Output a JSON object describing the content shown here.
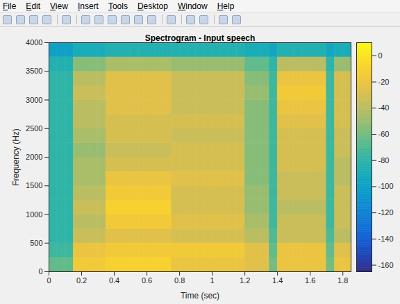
{
  "figure_window": {
    "menu": [
      "File",
      "Edit",
      "View",
      "Insert",
      "Tools",
      "Desktop",
      "Window",
      "Help"
    ]
  },
  "chart_data": {
    "type": "heatmap",
    "title": "Spectrogram - Input speech",
    "xlabel": "Time (sec)",
    "ylabel": "Frequency (Hz)",
    "xlim": [
      0,
      1.85
    ],
    "xticks": [
      0,
      0.2,
      0.4,
      0.6,
      0.8,
      1,
      1.2,
      1.4,
      1.6,
      1.8
    ],
    "ylim": [
      0,
      4000
    ],
    "yticks": [
      0,
      500,
      1000,
      1500,
      2000,
      2500,
      3000,
      3500,
      4000
    ],
    "x_bins": [
      0,
      0.05,
      0.1,
      0.15,
      0.2,
      0.25,
      0.3,
      0.35,
      0.4,
      0.45,
      0.5,
      0.55,
      0.6,
      0.65,
      0.7,
      0.75,
      0.8,
      0.85,
      0.9,
      0.95,
      1,
      1.05,
      1.1,
      1.15,
      1.2,
      1.25,
      1.3,
      1.35,
      1.4,
      1.45,
      1.5,
      1.55,
      1.6,
      1.65,
      1.7,
      1.75,
      1.8,
      1.85
    ],
    "y_bins": [
      0,
      250,
      500,
      750,
      1000,
      1250,
      1500,
      1750,
      2000,
      2250,
      2500,
      2750,
      3000,
      3250,
      3500,
      3750,
      4000
    ],
    "cells": [
      [
        -65,
        -65,
        -65,
        -15,
        -15,
        -15,
        -15,
        -10,
        -10,
        -10,
        -10,
        -10,
        -10,
        -10,
        -10,
        -20,
        -20,
        -20,
        -20,
        -20,
        -20,
        -20,
        -20,
        -20,
        -25,
        -25,
        -25,
        -60,
        -20,
        -20,
        -20,
        -20,
        -20,
        -20,
        -60,
        -20,
        -20
      ],
      [
        -75,
        -75,
        -75,
        -20,
        -20,
        -20,
        -20,
        -15,
        -15,
        -15,
        -15,
        -15,
        -15,
        -15,
        -15,
        -15,
        -15,
        -15,
        -15,
        -15,
        -15,
        -15,
        -15,
        -15,
        -25,
        -25,
        -25,
        -65,
        -20,
        -20,
        -20,
        -20,
        -20,
        -20,
        -65,
        -25,
        -25
      ],
      [
        -80,
        -80,
        -80,
        -35,
        -35,
        -35,
        -35,
        -25,
        -25,
        -25,
        -25,
        -25,
        -25,
        -25,
        -25,
        -30,
        -30,
        -30,
        -30,
        -30,
        -30,
        -30,
        -30,
        -30,
        -40,
        -40,
        -40,
        -70,
        -35,
        -35,
        -35,
        -35,
        -35,
        -35,
        -70,
        -40,
        -40
      ],
      [
        -80,
        -80,
        -80,
        -40,
        -40,
        -40,
        -40,
        -15,
        -15,
        -15,
        -15,
        -15,
        -15,
        -15,
        -15,
        -25,
        -25,
        -25,
        -25,
        -25,
        -25,
        -25,
        -25,
        -25,
        -45,
        -45,
        -45,
        -75,
        -35,
        -35,
        -35,
        -35,
        -35,
        -35,
        -75,
        -35,
        -35
      ],
      [
        -80,
        -80,
        -80,
        -35,
        -35,
        -35,
        -35,
        -10,
        -10,
        -10,
        -10,
        -10,
        -10,
        -10,
        -10,
        -30,
        -30,
        -30,
        -30,
        -30,
        -30,
        -30,
        -30,
        -30,
        -50,
        -50,
        -50,
        -75,
        -40,
        -40,
        -40,
        -40,
        -40,
        -40,
        -75,
        -35,
        -35
      ],
      [
        -80,
        -80,
        -80,
        -40,
        -40,
        -40,
        -40,
        -15,
        -15,
        -15,
        -15,
        -15,
        -15,
        -15,
        -15,
        -30,
        -30,
        -30,
        -30,
        -30,
        -30,
        -30,
        -30,
        -30,
        -50,
        -50,
        -50,
        -75,
        -35,
        -35,
        -35,
        -35,
        -35,
        -35,
        -75,
        -35,
        -35
      ],
      [
        -80,
        -80,
        -80,
        -45,
        -45,
        -45,
        -45,
        -20,
        -20,
        -20,
        -20,
        -20,
        -20,
        -20,
        -20,
        -25,
        -25,
        -25,
        -25,
        -25,
        -25,
        -25,
        -25,
        -25,
        -55,
        -55,
        -55,
        -75,
        -35,
        -35,
        -35,
        -35,
        -35,
        -35,
        -75,
        -40,
        -40
      ],
      [
        -80,
        -80,
        -80,
        -45,
        -45,
        -45,
        -45,
        -30,
        -30,
        -30,
        -30,
        -30,
        -30,
        -30,
        -30,
        -30,
        -30,
        -30,
        -30,
        -30,
        -30,
        -30,
        -30,
        -30,
        -55,
        -55,
        -55,
        -75,
        -30,
        -30,
        -30,
        -30,
        -30,
        -30,
        -75,
        -40,
        -40
      ],
      [
        -80,
        -80,
        -80,
        -50,
        -50,
        -50,
        -50,
        -35,
        -35,
        -35,
        -35,
        -35,
        -35,
        -35,
        -35,
        -30,
        -30,
        -30,
        -30,
        -30,
        -30,
        -30,
        -30,
        -30,
        -55,
        -55,
        -55,
        -75,
        -30,
        -30,
        -30,
        -30,
        -30,
        -30,
        -75,
        -35,
        -35
      ],
      [
        -80,
        -80,
        -80,
        -45,
        -45,
        -45,
        -45,
        -30,
        -30,
        -30,
        -30,
        -30,
        -30,
        -30,
        -30,
        -35,
        -35,
        -35,
        -35,
        -35,
        -35,
        -35,
        -35,
        -35,
        -55,
        -55,
        -55,
        -75,
        -30,
        -30,
        -30,
        -30,
        -30,
        -30,
        -75,
        -35,
        -35
      ],
      [
        -80,
        -80,
        -80,
        -40,
        -40,
        -40,
        -40,
        -30,
        -30,
        -30,
        -30,
        -30,
        -30,
        -30,
        -30,
        -30,
        -30,
        -30,
        -30,
        -30,
        -30,
        -30,
        -30,
        -30,
        -55,
        -55,
        -55,
        -75,
        -25,
        -25,
        -25,
        -25,
        -25,
        -25,
        -75,
        -30,
        -30
      ],
      [
        -80,
        -80,
        -80,
        -40,
        -40,
        -40,
        -40,
        -25,
        -25,
        -25,
        -25,
        -25,
        -25,
        -25,
        -25,
        -35,
        -35,
        -35,
        -35,
        -35,
        -35,
        -35,
        -35,
        -35,
        -55,
        -55,
        -55,
        -75,
        -20,
        -20,
        -20,
        -20,
        -20,
        -20,
        -75,
        -30,
        -30
      ],
      [
        -80,
        -80,
        -80,
        -35,
        -35,
        -35,
        -35,
        -25,
        -25,
        -25,
        -25,
        -25,
        -25,
        -25,
        -25,
        -35,
        -35,
        -35,
        -35,
        -35,
        -35,
        -35,
        -35,
        -35,
        -50,
        -50,
        -50,
        -75,
        -15,
        -15,
        -15,
        -15,
        -15,
        -15,
        -75,
        -30,
        -30
      ],
      [
        -80,
        -80,
        -80,
        -40,
        -40,
        -40,
        -40,
        -25,
        -25,
        -25,
        -25,
        -25,
        -25,
        -25,
        -25,
        -35,
        -35,
        -35,
        -35,
        -35,
        -35,
        -35,
        -35,
        -35,
        -55,
        -55,
        -55,
        -75,
        -20,
        -20,
        -20,
        -20,
        -20,
        -20,
        -75,
        -30,
        -30
      ],
      [
        -85,
        -85,
        -85,
        -55,
        -55,
        -55,
        -55,
        -45,
        -45,
        -45,
        -45,
        -45,
        -45,
        -45,
        -45,
        -50,
        -50,
        -50,
        -50,
        -50,
        -50,
        -50,
        -50,
        -50,
        -65,
        -65,
        -65,
        -80,
        -40,
        -40,
        -40,
        -40,
        -40,
        -40,
        -80,
        -50,
        -50
      ],
      [
        -100,
        -100,
        -100,
        -90,
        -90,
        -90,
        -90,
        -85,
        -85,
        -85,
        -85,
        -85,
        -85,
        -85,
        -85,
        -85,
        -85,
        -85,
        -85,
        -85,
        -85,
        -85,
        -85,
        -85,
        -90,
        -90,
        -90,
        -95,
        -85,
        -85,
        -85,
        -85,
        -85,
        -85,
        -95,
        -90,
        -90
      ]
    ],
    "colorbar": {
      "lim": [
        -165,
        10
      ],
      "ticks": [
        0,
        -20,
        -40,
        -60,
        -80,
        -100,
        -120,
        -140,
        -160
      ]
    }
  }
}
